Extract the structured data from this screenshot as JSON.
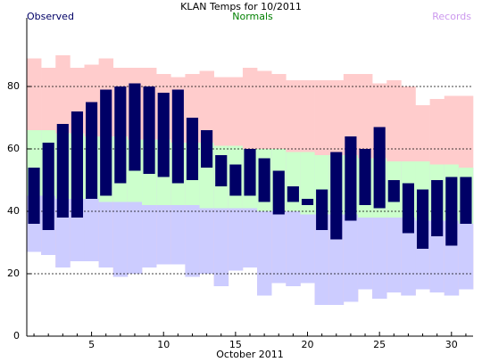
{
  "chart_data": {
    "type": "range_bar",
    "title": "KLAN Temps for 10/2011",
    "x_label": "October 2011",
    "categories": [
      null,
      null,
      null,
      null,
      "5",
      null,
      null,
      null,
      null,
      "10",
      null,
      null,
      null,
      null,
      "15",
      null,
      null,
      null,
      null,
      "20",
      null,
      null,
      null,
      null,
      "25",
      null,
      null,
      null,
      null,
      "30",
      null
    ],
    "ylim": [
      0,
      100
    ],
    "yticks": [
      0,
      20,
      40,
      60,
      80
    ],
    "grid": true,
    "series": [
      {
        "name": "Records",
        "color": "#cc99ee",
        "high_fill": "#ffcccc",
        "low_fill": "#ccccff",
        "highs": [
          89,
          86,
          90,
          86,
          87,
          89,
          86,
          86,
          86,
          84,
          83,
          84,
          85,
          83,
          83,
          86,
          85,
          84,
          82,
          82,
          82,
          82,
          84,
          84,
          81,
          82,
          80,
          74,
          76,
          77,
          77
        ],
        "lows": [
          27,
          26,
          22,
          24,
          24,
          22,
          19,
          20,
          22,
          23,
          23,
          19,
          20,
          16,
          21,
          22,
          13,
          17,
          16,
          17,
          10,
          10,
          11,
          15,
          12,
          14,
          13,
          15,
          14,
          13,
          15
        ]
      },
      {
        "name": "Normals",
        "color": "#008000",
        "fill": "#ccffcc",
        "highs": [
          66,
          66,
          65,
          65,
          64,
          64,
          64,
          63,
          63,
          63,
          62,
          62,
          62,
          61,
          61,
          60,
          60,
          60,
          59,
          59,
          58,
          58,
          58,
          57,
          57,
          56,
          56,
          56,
          55,
          55,
          54
        ],
        "lows": [
          45,
          45,
          44,
          44,
          44,
          43,
          43,
          43,
          42,
          42,
          42,
          42,
          41,
          41,
          41,
          41,
          40,
          40,
          40,
          39,
          39,
          39,
          39,
          38,
          38,
          38,
          38,
          37,
          37,
          37,
          36
        ]
      },
      {
        "name": "Observed",
        "color": "#000066",
        "highs": [
          54,
          62,
          68,
          72,
          75,
          79,
          80,
          81,
          80,
          78,
          79,
          70,
          66,
          58,
          55,
          60,
          57,
          53,
          48,
          44,
          47,
          59,
          64,
          60,
          67,
          50,
          49,
          47,
          50,
          51,
          51
        ],
        "lows": [
          36,
          34,
          38,
          38,
          44,
          45,
          49,
          53,
          52,
          51,
          49,
          50,
          54,
          48,
          45,
          45,
          43,
          39,
          43,
          42,
          34,
          31,
          37,
          42,
          41,
          43,
          33,
          28,
          32,
          29,
          36
        ]
      }
    ]
  }
}
